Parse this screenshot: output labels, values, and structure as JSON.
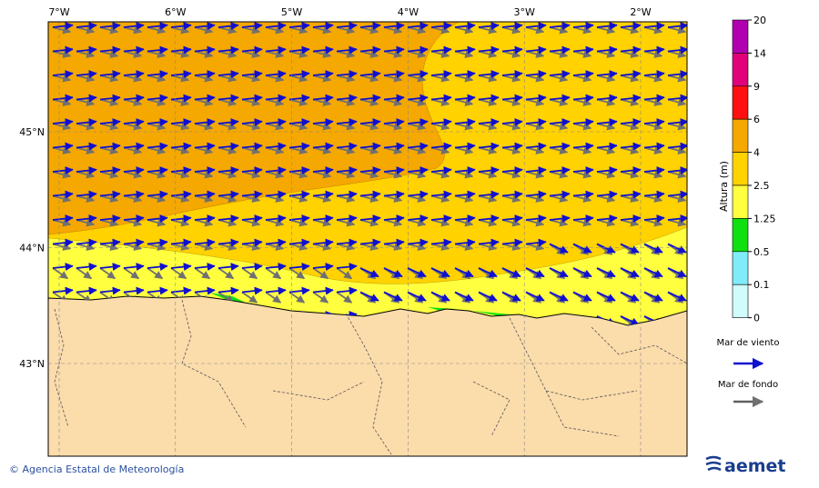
{
  "map": {
    "lon_labels": [
      "7°W",
      "6°W",
      "5°W",
      "4°W",
      "3°W",
      "2°W"
    ],
    "lat_labels": [
      "45°N",
      "44°N",
      "43°N"
    ],
    "colorbar": {
      "title": "Altura (m)",
      "labels": [
        "20",
        "14",
        "9",
        "6",
        "4",
        "2.5",
        "1.25",
        "0.5",
        "0.1",
        "0"
      ],
      "colors": [
        "#b000b0",
        "#e0007a",
        "#ff1010",
        "#f5a800",
        "#ffd200",
        "#ffff40",
        "#10e010",
        "#80ecfa",
        "#d0fcfc"
      ]
    },
    "legend": {
      "wind_sea": "Mar de viento",
      "swell": "Mar de fondo"
    }
  },
  "footer": {
    "credit": "© Agencia Estatal de Meteorología",
    "logo": "aemet"
  }
}
